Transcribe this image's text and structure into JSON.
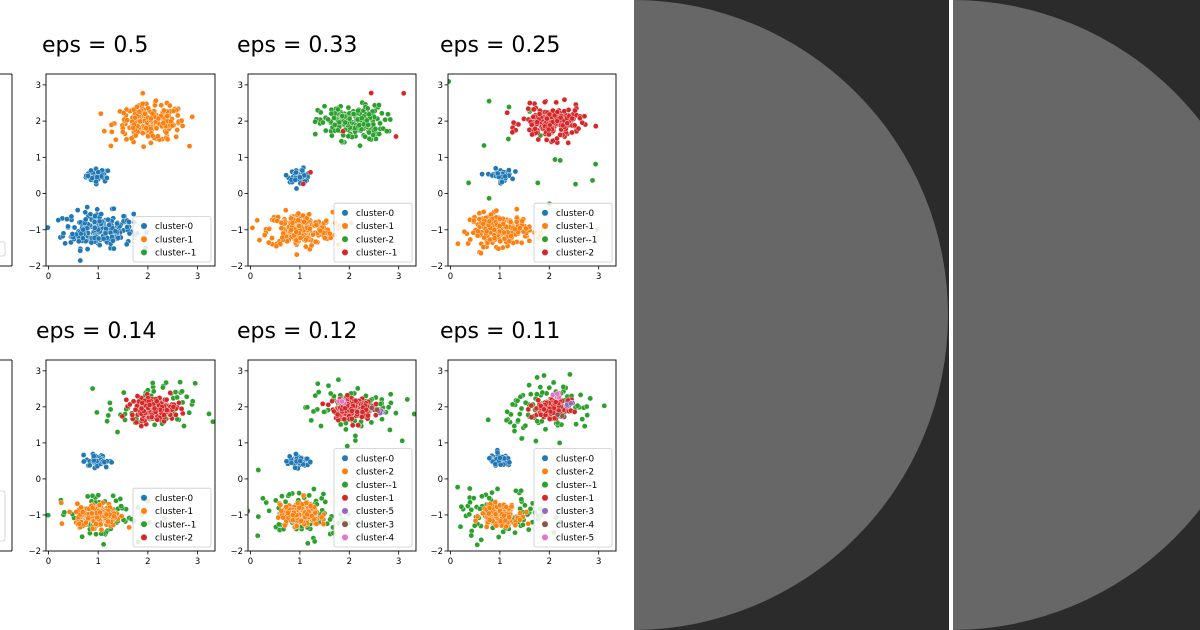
{
  "chart_data": [
    {
      "type": "scatter",
      "title": "eps = 0.5",
      "xlim": [
        -0.05,
        3.35
      ],
      "ylim": [
        -2,
        3.3
      ],
      "xticks": [
        "0",
        "1",
        "2",
        "3"
      ],
      "yticks": [
        "−2",
        "−1",
        "0",
        "1",
        "2",
        "3"
      ],
      "legend_position": "lower-right",
      "legend": [
        {
          "name": "cluster-0",
          "color": "#1f77b4"
        },
        {
          "name": "cluster-1",
          "color": "#ff7f0e"
        },
        {
          "name": "cluster--1",
          "color": "#2ca02c"
        }
      ],
      "blobs": [
        {
          "label": "cluster-0",
          "color": "#1f77b4",
          "center": [
            1.0,
            0.5
          ],
          "spread": [
            0.12,
            0.09
          ],
          "count": 45
        },
        {
          "label": "cluster-0",
          "color": "#1f77b4",
          "center": [
            1.0,
            -1.0
          ],
          "spread": [
            0.35,
            0.25
          ],
          "count": 220
        },
        {
          "label": "cluster-1",
          "color": "#ff7f0e",
          "center": [
            2.05,
            1.95
          ],
          "spread": [
            0.35,
            0.25
          ],
          "count": 220
        }
      ]
    },
    {
      "type": "scatter",
      "title": "eps = 0.33",
      "xlim": [
        -0.05,
        3.35
      ],
      "ylim": [
        -2,
        3.3
      ],
      "xticks": [
        "0",
        "1",
        "2",
        "3"
      ],
      "yticks": [
        "−2",
        "−1",
        "0",
        "1",
        "2",
        "3"
      ],
      "legend_position": "lower-right",
      "legend": [
        {
          "name": "cluster-0",
          "color": "#1f77b4"
        },
        {
          "name": "cluster-1",
          "color": "#ff7f0e"
        },
        {
          "name": "cluster-2",
          "color": "#2ca02c"
        },
        {
          "name": "cluster--1",
          "color": "#d62728"
        }
      ],
      "blobs": [
        {
          "label": "cluster-0",
          "color": "#1f77b4",
          "center": [
            1.0,
            0.5
          ],
          "spread": [
            0.12,
            0.09
          ],
          "count": 45
        },
        {
          "label": "cluster-1",
          "color": "#ff7f0e",
          "center": [
            1.0,
            -1.0
          ],
          "spread": [
            0.33,
            0.24
          ],
          "count": 210
        },
        {
          "label": "cluster-2",
          "color": "#2ca02c",
          "center": [
            2.05,
            1.95
          ],
          "spread": [
            0.33,
            0.24
          ],
          "count": 210
        },
        {
          "label": "cluster--1",
          "color": "#d62728",
          "center": [
            2.3,
            1.6
          ],
          "spread": [
            0.8,
            0.7
          ],
          "count": 6
        }
      ]
    },
    {
      "type": "scatter",
      "title": "eps = 0.25",
      "xlim": [
        -0.05,
        3.35
      ],
      "ylim": [
        -2,
        3.3
      ],
      "xticks": [
        "0",
        "1",
        "2",
        "3"
      ],
      "yticks": [
        "−2",
        "−1",
        "0",
        "1",
        "2",
        "3"
      ],
      "legend_position": "lower-right",
      "legend": [
        {
          "name": "cluster-0",
          "color": "#1f77b4"
        },
        {
          "name": "cluster-1",
          "color": "#ff7f0e"
        },
        {
          "name": "cluster--1",
          "color": "#2ca02c"
        },
        {
          "name": "cluster-2",
          "color": "#d62728"
        }
      ],
      "blobs": [
        {
          "label": "cluster-0",
          "color": "#1f77b4",
          "center": [
            1.0,
            0.5
          ],
          "spread": [
            0.12,
            0.09
          ],
          "count": 45
        },
        {
          "label": "cluster--1",
          "color": "#2ca02c",
          "center": [
            1.4,
            0.4
          ],
          "spread": [
            0.9,
            1.2
          ],
          "count": 25
        },
        {
          "label": "cluster-1",
          "color": "#ff7f0e",
          "center": [
            1.0,
            -1.0
          ],
          "spread": [
            0.3,
            0.22
          ],
          "count": 200
        },
        {
          "label": "cluster-2",
          "color": "#d62728",
          "center": [
            2.05,
            1.95
          ],
          "spread": [
            0.3,
            0.22
          ],
          "count": 200
        }
      ]
    },
    {
      "type": "scatter",
      "title": "eps = 0.14",
      "xlim": [
        -0.05,
        3.35
      ],
      "ylim": [
        -2,
        3.3
      ],
      "xticks": [
        "0",
        "1",
        "2",
        "3"
      ],
      "yticks": [
        "−2",
        "−1",
        "0",
        "1",
        "2",
        "3"
      ],
      "legend_position": "lower-right",
      "legend": [
        {
          "name": "cluster-0",
          "color": "#1f77b4"
        },
        {
          "name": "cluster-1",
          "color": "#ff7f0e"
        },
        {
          "name": "cluster--1",
          "color": "#2ca02c"
        },
        {
          "name": "cluster-2",
          "color": "#d62728"
        }
      ],
      "blobs": [
        {
          "label": "cluster--1",
          "color": "#2ca02c",
          "center": [
            1.05,
            -1.0
          ],
          "spread": [
            0.45,
            0.35
          ],
          "count": 80
        },
        {
          "label": "cluster--1",
          "color": "#2ca02c",
          "center": [
            2.05,
            1.95
          ],
          "spread": [
            0.45,
            0.35
          ],
          "count": 80
        },
        {
          "label": "cluster-0",
          "color": "#1f77b4",
          "center": [
            1.0,
            0.5
          ],
          "spread": [
            0.12,
            0.09
          ],
          "count": 45
        },
        {
          "label": "cluster-1",
          "color": "#ff7f0e",
          "center": [
            1.0,
            -1.0
          ],
          "spread": [
            0.22,
            0.16
          ],
          "count": 200
        },
        {
          "label": "cluster-2",
          "color": "#d62728",
          "center": [
            2.1,
            1.95
          ],
          "spread": [
            0.22,
            0.16
          ],
          "count": 200
        }
      ]
    },
    {
      "type": "scatter",
      "title": "eps = 0.12",
      "xlim": [
        -0.05,
        3.35
      ],
      "ylim": [
        -2,
        3.3
      ],
      "xticks": [
        "0",
        "1",
        "2",
        "3"
      ],
      "yticks": [
        "−2",
        "−1",
        "0",
        "1",
        "2",
        "3"
      ],
      "legend_position": "lower-right",
      "legend": [
        {
          "name": "cluster-0",
          "color": "#1f77b4"
        },
        {
          "name": "cluster-2",
          "color": "#ff7f0e"
        },
        {
          "name": "cluster--1",
          "color": "#2ca02c"
        },
        {
          "name": "cluster-1",
          "color": "#d62728"
        },
        {
          "name": "cluster-5",
          "color": "#9467bd"
        },
        {
          "name": "cluster-3",
          "color": "#8c564b"
        },
        {
          "name": "cluster-4",
          "color": "#e377c2"
        }
      ],
      "blobs": [
        {
          "label": "cluster--1",
          "color": "#2ca02c",
          "center": [
            1.05,
            -1.0
          ],
          "spread": [
            0.45,
            0.35
          ],
          "count": 90
        },
        {
          "label": "cluster--1",
          "color": "#2ca02c",
          "center": [
            2.05,
            1.95
          ],
          "spread": [
            0.45,
            0.35
          ],
          "count": 90
        },
        {
          "label": "cluster-0",
          "color": "#1f77b4",
          "center": [
            1.0,
            0.5
          ],
          "spread": [
            0.12,
            0.09
          ],
          "count": 45
        },
        {
          "label": "cluster-2",
          "color": "#ff7f0e",
          "center": [
            1.0,
            -1.0
          ],
          "spread": [
            0.2,
            0.15
          ],
          "count": 190
        },
        {
          "label": "cluster-1",
          "color": "#d62728",
          "center": [
            2.05,
            1.95
          ],
          "spread": [
            0.2,
            0.15
          ],
          "count": 170
        },
        {
          "label": "cluster-5",
          "color": "#9467bd",
          "center": [
            2.65,
            1.85
          ],
          "spread": [
            0.05,
            0.04
          ],
          "count": 6
        },
        {
          "label": "cluster-3",
          "color": "#8c564b",
          "center": [
            2.55,
            1.95
          ],
          "spread": [
            0.04,
            0.04
          ],
          "count": 4
        },
        {
          "label": "cluster-4",
          "color": "#e377c2",
          "center": [
            1.85,
            2.15
          ],
          "spread": [
            0.05,
            0.04
          ],
          "count": 5
        }
      ]
    },
    {
      "type": "scatter",
      "title": "eps = 0.11",
      "xlim": [
        -0.05,
        3.35
      ],
      "ylim": [
        -2,
        3.3
      ],
      "xticks": [
        "0",
        "1",
        "2",
        "3"
      ],
      "yticks": [
        "−2",
        "−1",
        "0",
        "1",
        "2",
        "3"
      ],
      "legend_position": "lower-right",
      "legend": [
        {
          "name": "cluster-0",
          "color": "#1f77b4"
        },
        {
          "name": "cluster-2",
          "color": "#ff7f0e"
        },
        {
          "name": "cluster--1",
          "color": "#2ca02c"
        },
        {
          "name": "cluster-1",
          "color": "#d62728"
        },
        {
          "name": "cluster-3",
          "color": "#9467bd"
        },
        {
          "name": "cluster-4",
          "color": "#8c564b"
        },
        {
          "name": "cluster-5",
          "color": "#e377c2"
        }
      ],
      "blobs": [
        {
          "label": "cluster--1",
          "color": "#2ca02c",
          "center": [
            1.05,
            -1.0
          ],
          "spread": [
            0.45,
            0.35
          ],
          "count": 100
        },
        {
          "label": "cluster--1",
          "color": "#2ca02c",
          "center": [
            2.05,
            1.95
          ],
          "spread": [
            0.45,
            0.35
          ],
          "count": 110
        },
        {
          "label": "cluster-0",
          "color": "#1f77b4",
          "center": [
            1.0,
            0.5
          ],
          "spread": [
            0.12,
            0.09
          ],
          "count": 45
        },
        {
          "label": "cluster-2",
          "color": "#ff7f0e",
          "center": [
            1.0,
            -1.0
          ],
          "spread": [
            0.18,
            0.14
          ],
          "count": 170
        },
        {
          "label": "cluster-1",
          "color": "#d62728",
          "center": [
            2.05,
            1.95
          ],
          "spread": [
            0.17,
            0.12
          ],
          "count": 140
        },
        {
          "label": "cluster-3",
          "color": "#9467bd",
          "center": [
            2.4,
            2.05
          ],
          "spread": [
            0.04,
            0.04
          ],
          "count": 4
        },
        {
          "label": "cluster-4",
          "color": "#8c564b",
          "center": [
            2.25,
            1.75
          ],
          "spread": [
            0.04,
            0.04
          ],
          "count": 4
        },
        {
          "label": "cluster-5",
          "color": "#e377c2",
          "center": [
            2.15,
            2.3
          ],
          "spread": [
            0.05,
            0.04
          ],
          "count": 5
        }
      ]
    }
  ],
  "colors": {
    "dark_panel": "#2b2b2b",
    "half_circle": "#676767",
    "divider": "#ffffff"
  }
}
